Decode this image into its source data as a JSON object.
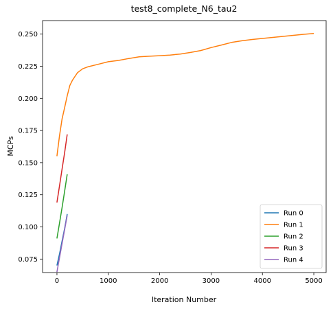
{
  "chart_data": {
    "type": "line",
    "title": "test8_complete_N6_tau2",
    "xlabel": "Iteration Number",
    "ylabel": "MCPs",
    "xlim": [
      -280,
      5240
    ],
    "ylim": [
      0.0645,
      0.2605
    ],
    "xticks": [
      0,
      1000,
      2000,
      3000,
      4000,
      5000
    ],
    "yticks": [
      0.075,
      0.1,
      0.125,
      0.15,
      0.175,
      0.2,
      0.225,
      0.25
    ],
    "legend_position": "lower-right",
    "grid": false,
    "series": [
      {
        "name": "Run 0",
        "color": "#1f77b4",
        "x": [
          0,
          50,
          100,
          150,
          200
        ],
        "y": [
          0.07,
          0.079,
          0.089,
          0.099,
          0.11
        ]
      },
      {
        "name": "Run 1",
        "color": "#ff7f0e",
        "x": [
          0,
          50,
          100,
          150,
          200,
          250,
          300,
          350,
          400,
          500,
          600,
          800,
          1000,
          1200,
          1400,
          1600,
          1800,
          2000,
          2200,
          2400,
          2600,
          2800,
          3000,
          3200,
          3400,
          3600,
          3800,
          4000,
          4200,
          4400,
          4600,
          4800,
          5000
        ],
        "y": [
          0.155,
          0.171,
          0.184,
          0.193,
          0.202,
          0.21,
          0.214,
          0.217,
          0.22,
          0.223,
          0.2245,
          0.2265,
          0.2285,
          0.2295,
          0.231,
          0.2323,
          0.2328,
          0.2332,
          0.2337,
          0.2345,
          0.2357,
          0.2372,
          0.2395,
          0.2415,
          0.2435,
          0.2448,
          0.2458,
          0.2466,
          0.2474,
          0.2482,
          0.249,
          0.2498,
          0.2505
        ]
      },
      {
        "name": "Run 2",
        "color": "#2ca02c",
        "x": [
          0,
          50,
          100,
          150,
          200
        ],
        "y": [
          0.091,
          0.103,
          0.115,
          0.128,
          0.141
        ]
      },
      {
        "name": "Run 3",
        "color": "#d62728",
        "x": [
          0,
          50,
          100,
          150,
          200
        ],
        "y": [
          0.119,
          0.132,
          0.145,
          0.158,
          0.172
        ]
      },
      {
        "name": "Run 4",
        "color": "#9467bd",
        "x": [
          0,
          50,
          100,
          150,
          200
        ],
        "y": [
          0.065,
          0.076,
          0.087,
          0.098,
          0.109
        ]
      }
    ]
  }
}
